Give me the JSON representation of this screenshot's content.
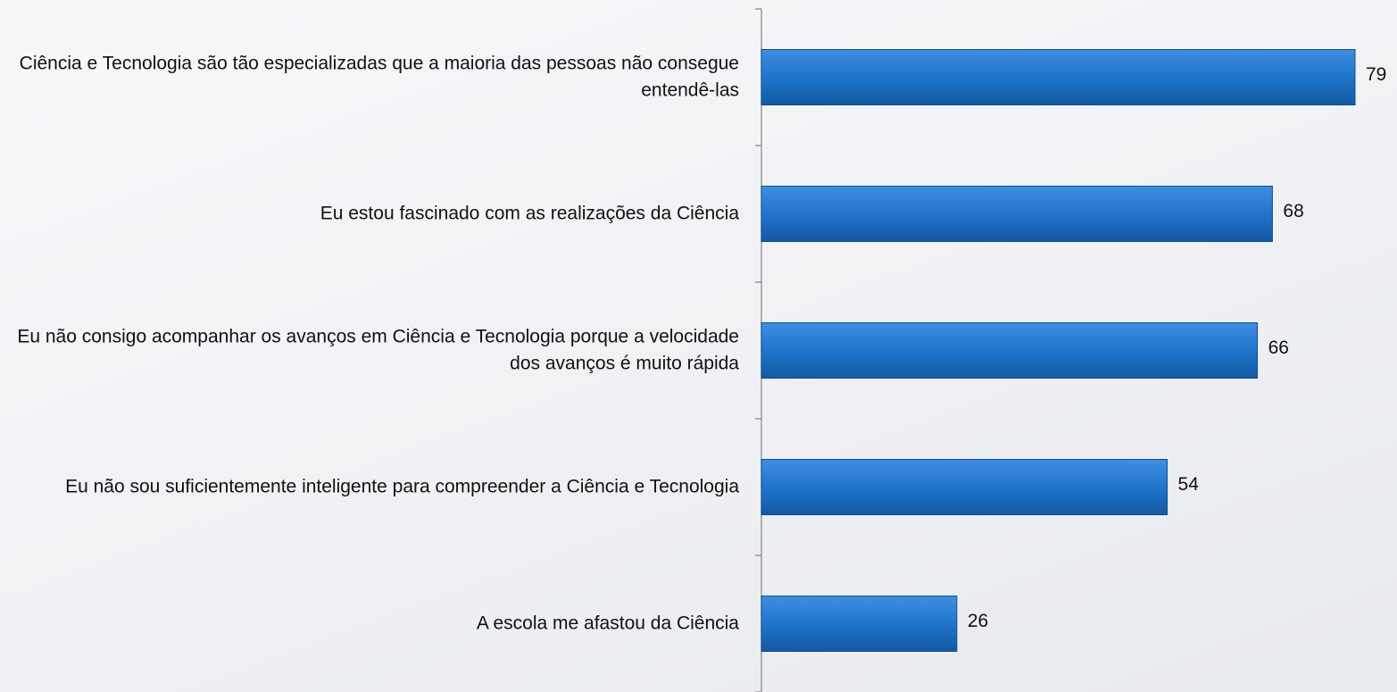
{
  "chart_data": {
    "type": "barh",
    "categories": [
      "Ciência e Tecnologia são tão especializadas que a maioria das pessoas não consegue entendê-las",
      "Eu estou fascinado com as realizações da Ciência",
      "Eu não consigo acompanhar os avanços em Ciência e Tecnologia porque a velocidade dos avanços é muito rápida",
      "Eu não sou suficientemente inteligente para compreender a Ciência e Tecnologia",
      "A escola me afastou da Ciência"
    ],
    "values": [
      79,
      68,
      66,
      54,
      26
    ],
    "color": "#1f74cc"
  }
}
